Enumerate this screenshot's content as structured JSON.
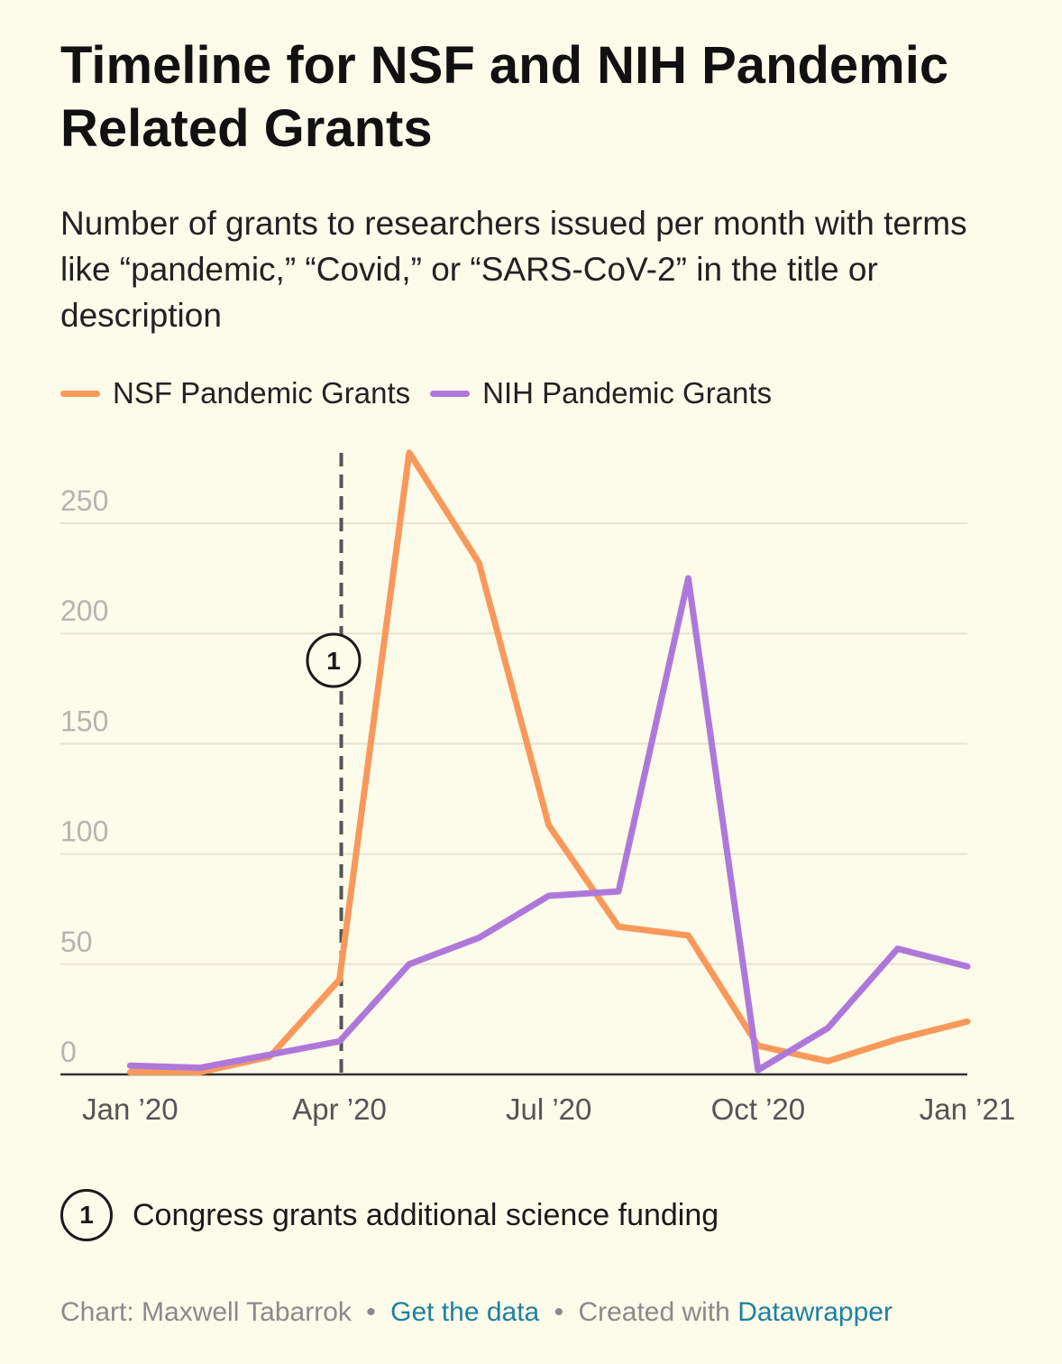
{
  "chart_data": {
    "type": "line",
    "title": "Timeline for NSF and NIH Pandemic Related Grants",
    "subtitle": "Number of grants to researchers issued per month with terms like “pandemic,” “Covid,” or “SARS-CoV-2” in the title or description",
    "x": [
      "2020-01",
      "2020-02",
      "2020-03",
      "2020-04",
      "2020-05",
      "2020-06",
      "2020-07",
      "2020-08",
      "2020-09",
      "2020-10",
      "2020-11",
      "2020-12",
      "2021-01"
    ],
    "series": [
      {
        "name": "NSF Pandemic Grants",
        "color": "#f8995b",
        "values": [
          1,
          1,
          8,
          43,
          282,
          232,
          113,
          67,
          63,
          13,
          6,
          16,
          24
        ]
      },
      {
        "name": "NIH Pandemic Grants",
        "color": "#ae78db",
        "values": [
          4,
          3,
          9,
          15,
          50,
          62,
          81,
          83,
          225,
          2,
          21,
          57,
          49
        ]
      }
    ],
    "x_ticks": [
      {
        "label": "Jan ’20",
        "x": "2020-01"
      },
      {
        "label": "Apr ’20",
        "x": "2020-04"
      },
      {
        "label": "Jul ’20",
        "x": "2020-07"
      },
      {
        "label": "Oct ’20",
        "x": "2020-10"
      },
      {
        "label": "Jan ’21",
        "x": "2021-01"
      }
    ],
    "y_ticks": [
      0,
      50,
      100,
      150,
      200,
      250
    ],
    "ylim": [
      0,
      290
    ],
    "x_range": [
      "2019-12",
      "2021-01"
    ],
    "grid": true,
    "legend_position": "top-left",
    "annotations": [
      {
        "number": "1",
        "x": "2020-04",
        "text": "Congress grants additional science funding"
      }
    ]
  },
  "footer": {
    "credit": "Chart: Maxwell Tabarrok",
    "separator": "•",
    "get_data": "Get the data",
    "created_with": "Created with",
    "tool": "Datawrapper"
  }
}
